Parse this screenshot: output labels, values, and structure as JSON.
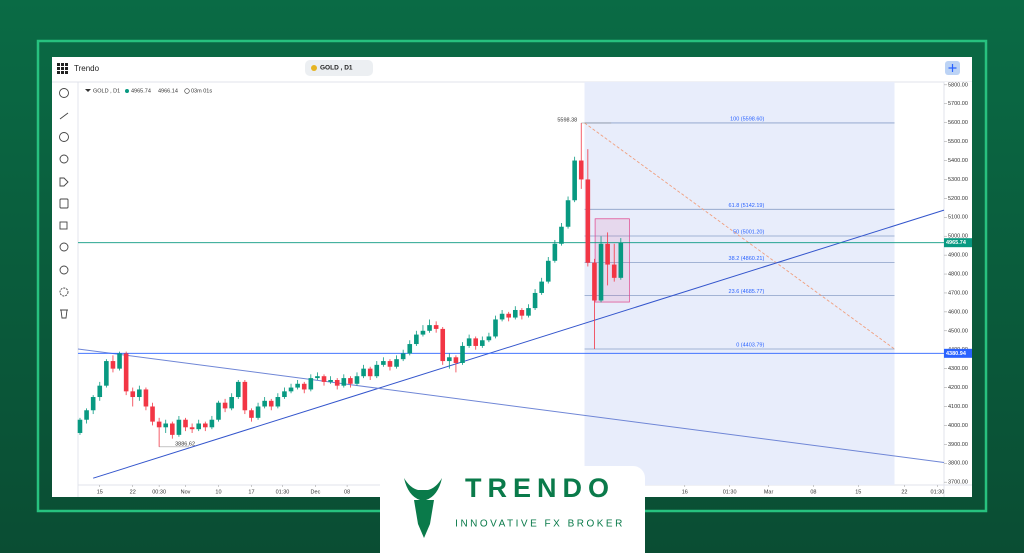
{
  "app": {
    "name": "Trendo",
    "symbol_tab": "GOLD , D1"
  },
  "brand": {
    "name": "TRENDO",
    "tagline": "INNOVATIVE FX BROKER"
  },
  "chart_data": {
    "type": "candlestick",
    "header": {
      "symbol": "GOLD , D1",
      "bid": 4965.74,
      "ask": 4966.14,
      "timer": "03m 01s"
    },
    "xlim": [
      -0.3,
      131
    ],
    "xticks": [
      {
        "value": 3,
        "label": "15"
      },
      {
        "value": 8,
        "label": "22"
      },
      {
        "value": 12,
        "label": "00:30"
      },
      {
        "value": 16,
        "label": "Nov"
      },
      {
        "value": 21,
        "label": "10"
      },
      {
        "value": 26,
        "label": "17"
      },
      {
        "value": 30.7,
        "label": "01:30"
      },
      {
        "value": 35.7,
        "label": "Dec"
      },
      {
        "value": 40.5,
        "label": "08"
      },
      {
        "value": 91.7,
        "label": "16"
      },
      {
        "value": 98.5,
        "label": "01:30"
      },
      {
        "value": 104.4,
        "label": "Mar"
      },
      {
        "value": 111.2,
        "label": "08"
      },
      {
        "value": 118,
        "label": "15"
      },
      {
        "value": 125,
        "label": "22"
      },
      {
        "value": 130,
        "label": "01:30"
      }
    ],
    "ylim": [
      3685,
      5815
    ],
    "yticks": [
      {
        "value": 3700,
        "label": "3700.00"
      },
      {
        "value": 3800,
        "label": "3800.00"
      },
      {
        "value": 3900,
        "label": "3900.00"
      },
      {
        "value": 4000,
        "label": "4000.00"
      },
      {
        "value": 4100,
        "label": "4100.00"
      },
      {
        "value": 4200,
        "label": "4200.00"
      },
      {
        "value": 4300,
        "label": "4300.00"
      },
      {
        "value": 4400,
        "label": "4400.00"
      },
      {
        "value": 4500,
        "label": "4500.00"
      },
      {
        "value": 4600,
        "label": "4600.00"
      },
      {
        "value": 4700,
        "label": "4700.00"
      },
      {
        "value": 4800,
        "label": "4800.00"
      },
      {
        "value": 4900,
        "label": "4900.00"
      },
      {
        "value": 5000,
        "label": "5000.00"
      },
      {
        "value": 5100,
        "label": "5100.00"
      },
      {
        "value": 5200,
        "label": "5200.00"
      },
      {
        "value": 5300,
        "label": "5300.00"
      },
      {
        "value": 5400,
        "label": "5400.00"
      },
      {
        "value": 5500,
        "label": "5500.00"
      },
      {
        "value": 5600,
        "label": "5600.00"
      },
      {
        "value": 5700,
        "label": "5700.00"
      },
      {
        "value": 5800,
        "label": "5800.00"
      }
    ],
    "up_color": "#089981",
    "down_color": "#f23645",
    "ohlc": [
      [
        3960,
        4040,
        3950,
        4030
      ],
      [
        4030,
        4090,
        4010,
        4080
      ],
      [
        4080,
        4160,
        4060,
        4150
      ],
      [
        4150,
        4230,
        4130,
        4210
      ],
      [
        4210,
        4350,
        4200,
        4340
      ],
      [
        4340,
        4370,
        4280,
        4300
      ],
      [
        4300,
        4390,
        4290,
        4380
      ],
      [
        4380,
        4390,
        4160,
        4180
      ],
      [
        4180,
        4200,
        4100,
        4150
      ],
      [
        4150,
        4210,
        4130,
        4190
      ],
      [
        4190,
        4200,
        4080,
        4100
      ],
      [
        4100,
        4120,
        4000,
        4020
      ],
      [
        4020,
        4040,
        3886.62,
        3990
      ],
      [
        3990,
        4030,
        3960,
        4010
      ],
      [
        4010,
        4020,
        3930,
        3950
      ],
      [
        3950,
        4050,
        3940,
        4030
      ],
      [
        4030,
        4040,
        3970,
        3990
      ],
      [
        3990,
        4010,
        3960,
        3980
      ],
      [
        3980,
        4030,
        3970,
        4010
      ],
      [
        4010,
        4020,
        3970,
        3990
      ],
      [
        3990,
        4050,
        3980,
        4030
      ],
      [
        4030,
        4130,
        4020,
        4120
      ],
      [
        4120,
        4140,
        4070,
        4090
      ],
      [
        4090,
        4170,
        4080,
        4150
      ],
      [
        4150,
        4240,
        4140,
        4230
      ],
      [
        4230,
        4240,
        4060,
        4080
      ],
      [
        4080,
        4090,
        4020,
        4040
      ],
      [
        4040,
        4120,
        4030,
        4100
      ],
      [
        4100,
        4150,
        4090,
        4130
      ],
      [
        4130,
        4140,
        4080,
        4100
      ],
      [
        4100,
        4170,
        4090,
        4150
      ],
      [
        4150,
        4200,
        4140,
        4180
      ],
      [
        4180,
        4220,
        4170,
        4200
      ],
      [
        4200,
        4240,
        4190,
        4220
      ],
      [
        4220,
        4230,
        4170,
        4190
      ],
      [
        4190,
        4270,
        4180,
        4250
      ],
      [
        4250,
        4280,
        4240,
        4260
      ],
      [
        4260,
        4270,
        4210,
        4230
      ],
      [
        4230,
        4260,
        4220,
        4240
      ],
      [
        4240,
        4250,
        4190,
        4210
      ],
      [
        4210,
        4270,
        4200,
        4250
      ],
      [
        4250,
        4260,
        4200,
        4220
      ],
      [
        4220,
        4280,
        4210,
        4260
      ],
      [
        4260,
        4320,
        4250,
        4300
      ],
      [
        4300,
        4310,
        4240,
        4260
      ],
      [
        4260,
        4340,
        4250,
        4320
      ],
      [
        4320,
        4360,
        4310,
        4340
      ],
      [
        4340,
        4350,
        4290,
        4310
      ],
      [
        4310,
        4370,
        4300,
        4350
      ],
      [
        4350,
        4400,
        4340,
        4380
      ],
      [
        4380,
        4450,
        4370,
        4430
      ],
      [
        4430,
        4500,
        4420,
        4480
      ],
      [
        4480,
        4530,
        4470,
        4500
      ],
      [
        4500,
        4560,
        4490,
        4530
      ],
      [
        4530,
        4550,
        4490,
        4510
      ],
      [
        4510,
        4520,
        4320,
        4340
      ],
      [
        4340,
        4380,
        4300,
        4360
      ],
      [
        4360,
        4370,
        4280,
        4330
      ],
      [
        4330,
        4440,
        4320,
        4420
      ],
      [
        4420,
        4480,
        4410,
        4460
      ],
      [
        4460,
        4470,
        4400,
        4420
      ],
      [
        4420,
        4470,
        4410,
        4450
      ],
      [
        4450,
        4490,
        4440,
        4470
      ],
      [
        4470,
        4580,
        4460,
        4560
      ],
      [
        4560,
        4610,
        4550,
        4590
      ],
      [
        4590,
        4600,
        4550,
        4570
      ],
      [
        4570,
        4630,
        4560,
        4610
      ],
      [
        4610,
        4620,
        4560,
        4580
      ],
      [
        4580,
        4640,
        4570,
        4620
      ],
      [
        4620,
        4720,
        4610,
        4700
      ],
      [
        4700,
        4780,
        4690,
        4760
      ],
      [
        4760,
        4890,
        4750,
        4870
      ],
      [
        4870,
        4980,
        4860,
        4960
      ],
      [
        4960,
        5070,
        4950,
        5050
      ],
      [
        5050,
        5210,
        5040,
        5190
      ],
      [
        5190,
        5420,
        5180,
        5400
      ],
      [
        5400,
        5598.38,
        5250,
        5300
      ],
      [
        5300,
        5460,
        4840,
        4860
      ],
      [
        4860,
        4880,
        4403.79,
        4660
      ],
      [
        4660,
        5000,
        4650,
        4960
      ],
      [
        4960,
        5020,
        4740,
        4850
      ],
      [
        4850,
        4960,
        4760,
        4780
      ],
      [
        4780,
        4990,
        4770,
        4965.74
      ]
    ],
    "annotations": [
      {
        "index": 76,
        "value": 5598.38,
        "label": "5598.38"
      },
      {
        "index": 12,
        "value": 3886.62,
        "label": "3886.62"
      }
    ],
    "price_lines": [
      {
        "value": 4965.74,
        "color": "#089981"
      },
      {
        "value": 4380.94,
        "color": "#2962ff"
      }
    ],
    "trend_lines": [
      {
        "points": [
          [
            2,
            3721
          ],
          [
            131,
            5138
          ]
        ],
        "color": "#3355cc"
      },
      {
        "points": [
          [
            -0.3,
            4404
          ],
          [
            131,
            3804
          ]
        ],
        "color": "#6f86d6"
      }
    ],
    "fib": {
      "x_range": [
        76.5,
        123.5
      ],
      "shade": "#e8edfb",
      "levels": [
        {
          "value": 5598.6,
          "label": "100 (5598.60)"
        },
        {
          "value": 5142.19,
          "label": "61.8 (5142.19)"
        },
        {
          "value": 5001.2,
          "label": "50 (5001.20)"
        },
        {
          "value": 4860.21,
          "label": "38.2 (4860.21)"
        },
        {
          "value": 4685.77,
          "label": "23.6 (4685.77)"
        },
        {
          "value": 4403.79,
          "label": "0 (4403.79)"
        }
      ],
      "trend": {
        "color": "#f0a080"
      }
    },
    "box": {
      "x_range": [
        78.1,
        83.3
      ],
      "range": [
        4652,
        5092
      ],
      "color": "#e0408a"
    }
  }
}
